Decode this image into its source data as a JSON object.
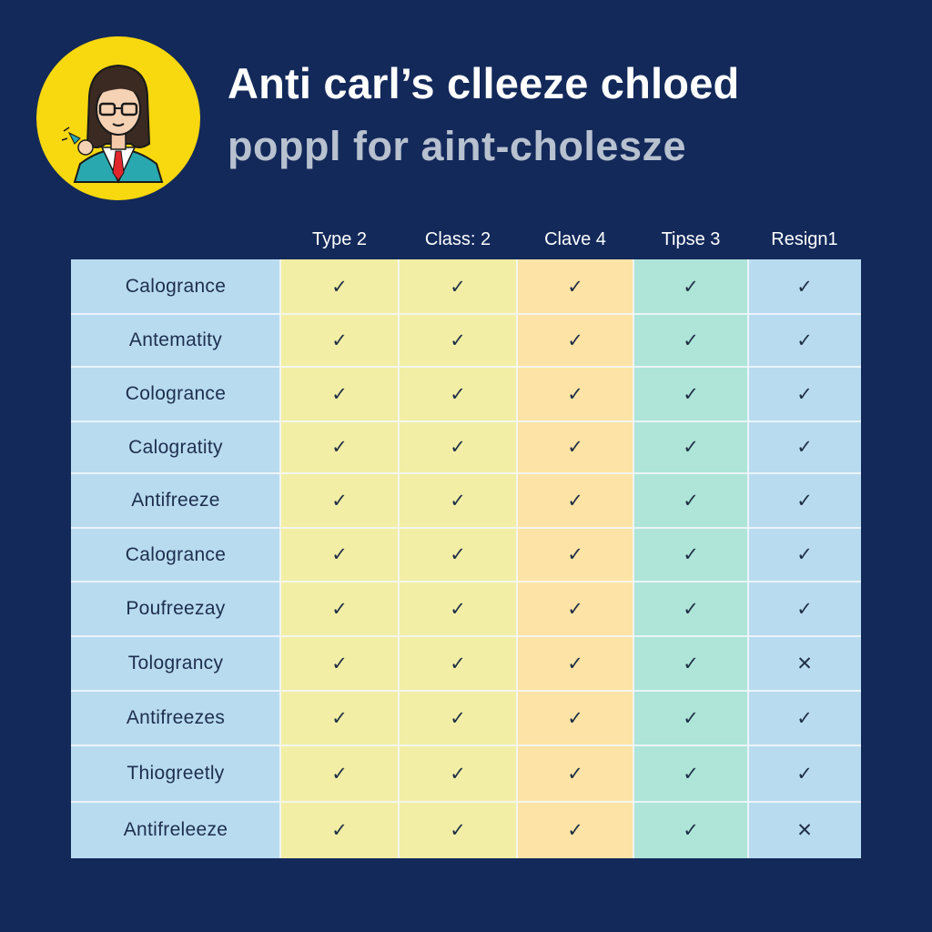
{
  "header": {
    "title": "Anti carl’s clleeze chloed",
    "subtitle": "poppl for aint-cholesze"
  },
  "colors": {
    "background": "#13295a",
    "title": "#ffffff",
    "subtitle": "#b7c1cf",
    "avatar_circle": "#f8d80e",
    "row_label_column": "#b9dbef",
    "type2_column": "#f2eea6",
    "class2_column": "#f2eea6",
    "clave4_column": "#fde4a6",
    "tipse3_column": "#aee5d8",
    "resign1_column": "#b9dbef"
  },
  "avatar": {
    "icon": "teacher-avatar-icon"
  },
  "table": {
    "columns": [
      {
        "key": "type2",
        "label": "Type 2"
      },
      {
        "key": "class2",
        "label": "Class: 2"
      },
      {
        "key": "clave4",
        "label": "Clave 4"
      },
      {
        "key": "tipse3",
        "label": "Tipse 3"
      },
      {
        "key": "resign1",
        "label": "Resign1"
      }
    ],
    "check_symbol": "✓",
    "cross_symbol": "✕",
    "rows": [
      {
        "label": "Calogrance",
        "values": [
          true,
          true,
          true,
          true,
          true
        ]
      },
      {
        "label": "Antematity",
        "values": [
          true,
          true,
          true,
          true,
          true
        ]
      },
      {
        "label": "Cologrance",
        "values": [
          true,
          true,
          true,
          true,
          true
        ]
      },
      {
        "label": "Calogratity",
        "values": [
          true,
          true,
          true,
          true,
          true
        ]
      },
      {
        "label": "Antifreeze",
        "values": [
          true,
          true,
          true,
          true,
          true
        ]
      },
      {
        "label": "Calogrance",
        "values": [
          true,
          true,
          true,
          true,
          true
        ]
      },
      {
        "label": "Poufreezay",
        "values": [
          true,
          true,
          true,
          true,
          true
        ]
      },
      {
        "label": "Tolograncy",
        "values": [
          true,
          true,
          true,
          true,
          false
        ]
      },
      {
        "label": "Antifreezes",
        "values": [
          true,
          true,
          true,
          true,
          true
        ]
      },
      {
        "label": "Thiogreetly",
        "values": [
          true,
          true,
          true,
          true,
          true
        ]
      },
      {
        "label": "Antifreleeze",
        "values": [
          true,
          true,
          true,
          true,
          false
        ]
      }
    ]
  }
}
